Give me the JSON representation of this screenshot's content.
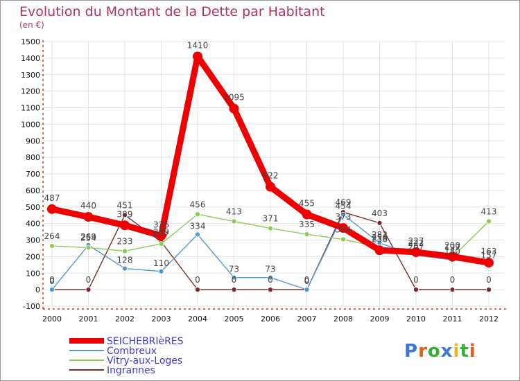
{
  "chart_data": {
    "type": "line",
    "title": "Evolution du Montant de la Dette par Habitant",
    "subtitle": "(en €)",
    "categories": [
      "2000",
      "2001",
      "2002",
      "2003",
      "2004",
      "2005",
      "2006",
      "2007",
      "2008",
      "2009",
      "2010",
      "2011",
      "2012"
    ],
    "ylim": [
      -100,
      1500
    ],
    "yticks": [
      -100,
      0,
      100,
      200,
      300,
      400,
      500,
      600,
      700,
      800,
      900,
      1000,
      1100,
      1200,
      1300,
      1400,
      1500
    ],
    "grid": true,
    "legend_position": "bottom-left",
    "series": [
      {
        "name": "SEICHEBRIèRES",
        "color": "#ee0000",
        "values": [
          487,
          440,
          389,
          326,
          1410,
          1095,
          622,
          455,
          373,
          238,
          227,
          200,
          163
        ],
        "labels": [
          "487",
          "440",
          "389",
          "326",
          "1410",
          "1095",
          "622",
          "455",
          "373",
          "238",
          "227",
          "200",
          "163"
        ]
      },
      {
        "name": "Combreux",
        "color": "#5599cc",
        "values": [
          0,
          269,
          128,
          110,
          334,
          73,
          73,
          0,
          454,
          282,
          207,
          180,
          157
        ],
        "labels": [
          "0",
          "269",
          "128",
          "110",
          "334",
          "73",
          "73",
          "0",
          "454",
          "282",
          "207",
          "180",
          "157"
        ]
      },
      {
        "name": "Vitry-aux-Loges",
        "color": "#88cc55",
        "values": [
          264,
          254,
          233,
          277,
          456,
          413,
          371,
          335,
          304,
          256,
          222,
          197,
          413
        ],
        "labels": [
          "264",
          "254",
          "233",
          "277",
          "456",
          "413",
          "371",
          "335",
          "304",
          "256",
          "222",
          "197",
          "413"
        ]
      },
      {
        "name": "Ingrannes",
        "color": "#7a2a2a",
        "values": [
          0,
          0,
          451,
          289,
          0,
          0,
          0,
          0,
          469,
          403,
          0,
          0,
          0
        ],
        "labels": [
          "0",
          "0",
          "451",
          "289",
          "0",
          "0",
          "0",
          "0",
          "469",
          "403",
          "0",
          "0",
          "0"
        ]
      }
    ]
  },
  "logo": {
    "text": "Proxiti"
  }
}
